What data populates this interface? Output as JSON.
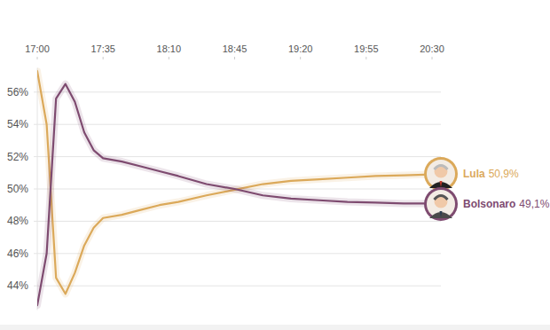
{
  "chart_data": {
    "type": "line",
    "x": [
      1020,
      1025,
      1030,
      1035,
      1040,
      1045,
      1050,
      1055,
      1065,
      1075,
      1085,
      1095,
      1110,
      1125,
      1140,
      1155,
      1170,
      1185,
      1200,
      1215,
      1230
    ],
    "xlim": [
      1020,
      1230
    ],
    "xticks": [
      {
        "value": 1020,
        "label": "17:00"
      },
      {
        "value": 1055,
        "label": "17:35"
      },
      {
        "value": 1090,
        "label": "18:10"
      },
      {
        "value": 1125,
        "label": "18:45"
      },
      {
        "value": 1160,
        "label": "19:20"
      },
      {
        "value": 1195,
        "label": "19:55"
      },
      {
        "value": 1230,
        "label": "20:30"
      }
    ],
    "ylim": [
      42.5,
      57.5
    ],
    "yticks": [
      {
        "value": 44,
        "label": "44%"
      },
      {
        "value": 46,
        "label": "46%"
      },
      {
        "value": 48,
        "label": "48%"
      },
      {
        "value": 50,
        "label": "50%"
      },
      {
        "value": 52,
        "label": "52%"
      },
      {
        "value": 54,
        "label": "54%"
      },
      {
        "value": 56,
        "label": "56%"
      }
    ],
    "grid": true,
    "series": [
      {
        "name": "Lula",
        "color": "#dba95a",
        "values": [
          57.3,
          54.0,
          44.5,
          43.5,
          44.8,
          46.5,
          47.6,
          48.2,
          48.4,
          48.7,
          49.0,
          49.2,
          49.6,
          49.95,
          50.3,
          50.5,
          50.6,
          50.7,
          50.8,
          50.85,
          50.9
        ],
        "value_labels": [
          null,
          null,
          null,
          null,
          null,
          null,
          null,
          null,
          null,
          null,
          null,
          null,
          null,
          null,
          null,
          null,
          null,
          null,
          null,
          null,
          "50,9%"
        ]
      },
      {
        "name": "Bolsonaro",
        "color": "#7e4b70",
        "values": [
          42.8,
          46.0,
          55.6,
          56.5,
          55.4,
          53.5,
          52.4,
          51.9,
          51.7,
          51.4,
          51.1,
          50.8,
          50.3,
          50.0,
          49.6,
          49.4,
          49.3,
          49.2,
          49.15,
          49.1,
          49.1
        ],
        "value_labels": [
          null,
          null,
          null,
          null,
          null,
          null,
          null,
          null,
          null,
          null,
          null,
          null,
          null,
          null,
          null,
          null,
          null,
          null,
          null,
          null,
          "49,1%"
        ]
      }
    ]
  }
}
